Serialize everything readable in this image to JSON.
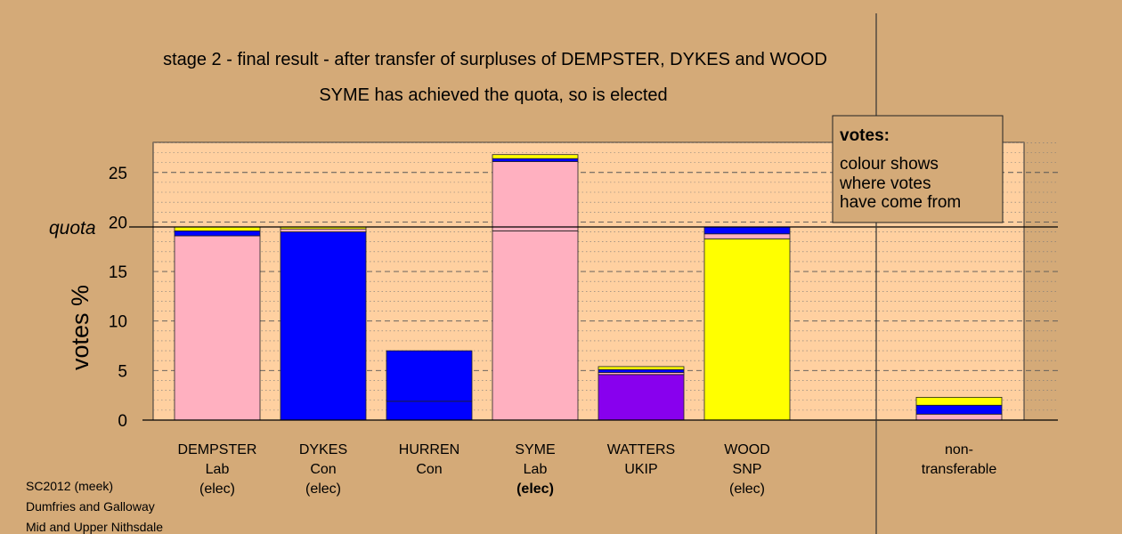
{
  "chart_data": {
    "type": "bar",
    "stacked": true,
    "title": "stage 2 - final result - after transfer of surpluses of DEMPSTER, DYKES and WOOD",
    "subtitle": "SYME has achieved the quota, so is elected",
    "ylabel": "votes %",
    "ylim": [
      0,
      28
    ],
    "yticks": [
      0,
      5,
      10,
      15,
      20,
      25
    ],
    "quota": 19.5,
    "quota_label": "quota",
    "grid": "horizontal dashed",
    "legend": {
      "title": "votes:",
      "lines": [
        "colour shows",
        "where votes",
        "have come from"
      ],
      "placement": "top-right"
    },
    "colors": {
      "Lab": "#ffb0c0",
      "Con": "#0000ff",
      "SNP": "#ffff00",
      "UKIP": "#8800ee",
      "plot_bg": "#ffd0a0",
      "page_bg": "#d4aa78"
    },
    "bars": [
      {
        "name": "DEMPSTER",
        "party": "Lab",
        "status": "(elec)",
        "status_bold": false,
        "segments": [
          {
            "from": "Lab",
            "value": 18.6
          },
          {
            "from": "Con",
            "value": 0.5
          },
          {
            "from": "SNP",
            "value": 0.4
          }
        ]
      },
      {
        "name": "DYKES",
        "party": "Con",
        "status": "(elec)",
        "status_bold": false,
        "segments": [
          {
            "from": "Con",
            "value": 19.0
          },
          {
            "from": "Lab",
            "value": 0.3
          },
          {
            "from": "SNP",
            "value": 0.2
          }
        ]
      },
      {
        "name": "HURREN",
        "party": "Con",
        "status": "",
        "status_bold": false,
        "segments": [
          {
            "from": "Con",
            "value": 1.9
          },
          {
            "from": "Con",
            "value": 5.1
          }
        ]
      },
      {
        "name": "SYME",
        "party": "Lab",
        "status": "(elec)",
        "status_bold": true,
        "segments": [
          {
            "from": "Lab",
            "value": 19.1
          },
          {
            "from": "Lab",
            "value": 7.0
          },
          {
            "from": "Con",
            "value": 0.3
          },
          {
            "from": "SNP",
            "value": 0.4
          }
        ]
      },
      {
        "name": "WATTERS",
        "party": "UKIP",
        "status": "",
        "status_bold": false,
        "segments": [
          {
            "from": "UKIP",
            "value": 4.6
          },
          {
            "from": "Lab",
            "value": 0.2
          },
          {
            "from": "Con",
            "value": 0.3
          },
          {
            "from": "SNP",
            "value": 0.3
          }
        ]
      },
      {
        "name": "WOOD",
        "party": "SNP",
        "status": "(elec)",
        "status_bold": false,
        "segments": [
          {
            "from": "SNP",
            "value": 18.3
          },
          {
            "from": "Lab",
            "value": 0.5
          },
          {
            "from": "Con",
            "value": 0.7
          }
        ]
      },
      {
        "name": "",
        "party": "",
        "status": "",
        "status_bold": false,
        "segments": []
      },
      {
        "name": "non-",
        "party": "transferable",
        "status": "",
        "status_bold": false,
        "segments": [
          {
            "from": "Lab",
            "value": 0.6
          },
          {
            "from": "Con",
            "value": 0.9
          },
          {
            "from": "SNP",
            "value": 0.8
          }
        ]
      }
    ]
  },
  "footer": {
    "line1": "SC2012 (meek)",
    "line2": "Dumfries and Galloway",
    "line3": "Mid and Upper Nithsdale"
  }
}
